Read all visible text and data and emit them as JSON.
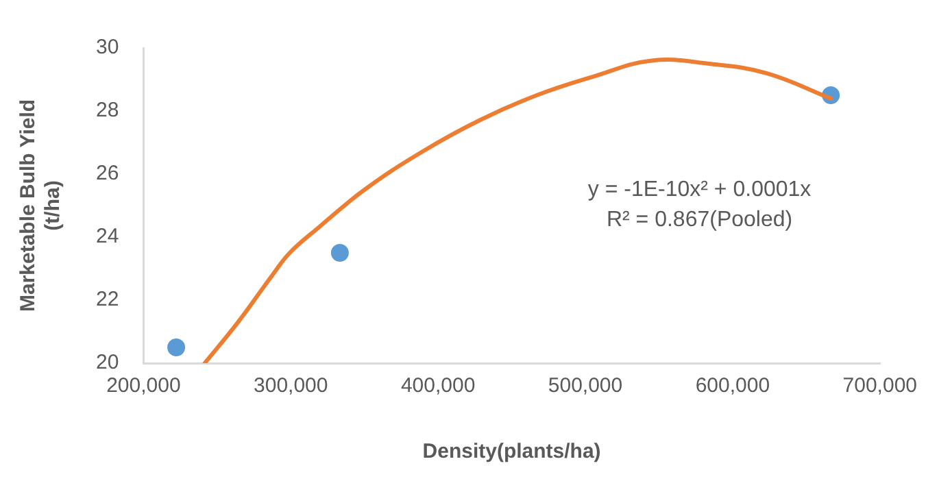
{
  "chart_data": {
    "type": "scatter",
    "xlabel": "Density(plants/ha)",
    "ylabel": "Marketable Bulb Yield\n(t/ha)",
    "xlim": [
      200000,
      700000
    ],
    "ylim": [
      20,
      30
    ],
    "xticks": [
      {
        "value": 200000,
        "label": "200,000"
      },
      {
        "value": 300000,
        "label": "300,000"
      },
      {
        "value": 400000,
        "label": "400,000"
      },
      {
        "value": 500000,
        "label": "500,000"
      },
      {
        "value": 600000,
        "label": "600,000"
      },
      {
        "value": 700000,
        "label": "700,000"
      }
    ],
    "yticks": [
      20,
      22,
      24,
      26,
      28,
      30
    ],
    "grid": false,
    "legend": false,
    "marker": "circle",
    "series": [
      {
        "color": "#5b9bd5",
        "x": [
          222222,
          333333,
          666667
        ],
        "values": [
          20.5,
          23.5,
          28.5
        ]
      },
      {
        "type": "line",
        "color": "#ed7d31",
        "marker": "none",
        "line_style": "solid",
        "x": [
          241600,
          264200,
          287600,
          299300,
          318800,
          350000,
          389000,
          428000,
          467000,
          506000,
          545000,
          584000,
          623000,
          666600
        ],
        "values": [
          20.0,
          21.3,
          22.8,
          23.5,
          24.3,
          25.5,
          26.7,
          27.7,
          28.5,
          29.1,
          29.6,
          29.5,
          29.2,
          28.4
        ]
      }
    ],
    "annotations": [
      "y = -1E-10x² + 0.0001x",
      "R² = 0.867(Pooled)"
    ]
  }
}
